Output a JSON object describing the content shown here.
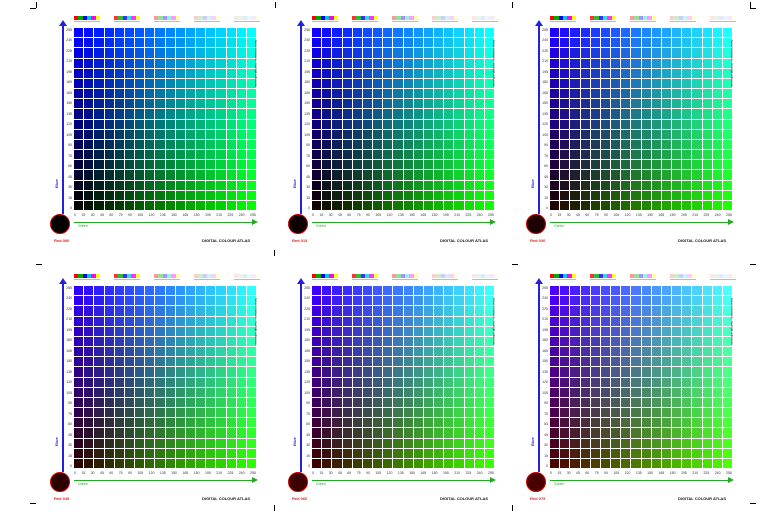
{
  "atlas_title": "DIGITAL COLOUR ATLAS",
  "axis_blue_label": "Blue",
  "axis_green_label": "Green",
  "side_note": "Screen Colours - hex/rgb reference",
  "tick_values": [
    "0",
    "15",
    "30",
    "45",
    "60",
    "75",
    "90",
    "105",
    "120",
    "135",
    "150",
    "165",
    "180",
    "195",
    "210",
    "225",
    "240",
    "255"
  ],
  "swatch_groups": [
    [
      "#ff0000",
      "#00aa00",
      "#0000ff",
      "#00cccc",
      "#ff00ff",
      "#ffff00"
    ],
    [
      "#ff3333",
      "#33bb33",
      "#3333ff",
      "#33dddd",
      "#ff33ff",
      "#ffff33"
    ],
    [
      "#ff9999",
      "#99dd99",
      "#9999ff",
      "#99eeee",
      "#ff99ff",
      "#ffff99"
    ],
    [
      "#ffcccc",
      "#cceecc",
      "#ccccff",
      "#ccf5f5",
      "#ffccff",
      "#ffffcc"
    ],
    [
      "#ffe6e6",
      "#e6f5e6",
      "#e6e6ff",
      "#e6fafa",
      "#ffe6ff",
      "#ffffe6"
    ]
  ],
  "panels": [
    {
      "red_label": "Red 000",
      "red": 0,
      "red_swatch": "#000000"
    },
    {
      "red_label": "Red 015",
      "red": 15,
      "red_swatch": "#0f0000"
    },
    {
      "red_label": "Red 030",
      "red": 30,
      "red_swatch": "#1e0000"
    },
    {
      "red_label": "Red 045",
      "red": 45,
      "red_swatch": "#2d0000"
    },
    {
      "red_label": "Red 060",
      "red": 60,
      "red_swatch": "#3c0000"
    },
    {
      "red_label": "Red 075",
      "red": 75,
      "red_swatch": "#4b0000"
    }
  ]
}
